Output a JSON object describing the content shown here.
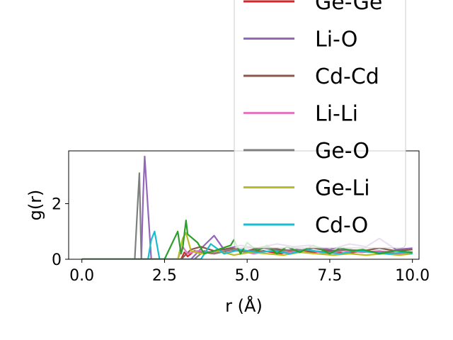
{
  "chart_data": {
    "type": "line",
    "title": "",
    "xlabel": "r (Å)",
    "ylabel": "g(r)",
    "xlim": [
      -0.4,
      10.2
    ],
    "ylim": [
      0,
      3.9
    ],
    "xticks": [
      0.0,
      2.5,
      5.0,
      7.5,
      10.0
    ],
    "xtick_labels": [
      "0.0",
      "2.5",
      "5.0",
      "7.5",
      "10.0"
    ],
    "yticks": [
      0,
      2
    ],
    "ytick_labels": [
      "0",
      "2"
    ],
    "grid": false,
    "legend_placement": "upper-right, extends above the axes",
    "series": [
      {
        "name": "Ge-Ge",
        "color": "#d62728",
        "x": [
          0.0,
          3.0,
          3.1,
          3.2,
          3.4,
          4.0,
          4.6,
          5.0,
          5.5,
          6.0,
          6.5,
          7.0,
          7.5,
          8.0,
          8.5,
          9.0,
          9.5,
          10.0
        ],
        "y": [
          0,
          0,
          0.25,
          0.1,
          0.3,
          0.2,
          0.35,
          0.25,
          0.3,
          0.2,
          0.35,
          0.25,
          0.3,
          0.2,
          0.3,
          0.25,
          0.2,
          0.25
        ]
      },
      {
        "name": "Li-O",
        "color": "#9467bd",
        "x": [
          0.0,
          1.8,
          1.85,
          1.9,
          2.0,
          2.1,
          3.3,
          3.7,
          4.0,
          4.3,
          4.8,
          5.3,
          5.9,
          6.4,
          6.9,
          7.5,
          8.1,
          8.6,
          9.0,
          9.5,
          10.0
        ],
        "y": [
          0,
          0,
          2.2,
          3.7,
          1.8,
          0,
          0,
          0.5,
          0.85,
          0.35,
          0.5,
          0.4,
          0.55,
          0.45,
          0.5,
          0.35,
          0.55,
          0.45,
          0.75,
          0.35,
          0.4
        ]
      },
      {
        "name": "Cd-Cd",
        "color": "#8c564b",
        "x": [
          0.0,
          3.0,
          3.3,
          3.6,
          4.0,
          4.5,
          5.0,
          5.5,
          6.0,
          6.5,
          7.0,
          7.5,
          8.0,
          8.5,
          9.0,
          9.5,
          10.0
        ],
        "y": [
          0,
          0,
          0.35,
          0.45,
          0.3,
          0.4,
          0.3,
          0.45,
          0.35,
          0.3,
          0.4,
          0.3,
          0.35,
          0.3,
          0.4,
          0.3,
          0.35
        ]
      },
      {
        "name": "Li-Li",
        "color": "#e377c2",
        "x": [
          0.0,
          2.9,
          3.05,
          3.2,
          3.5,
          4.0,
          4.6,
          5.2,
          5.7,
          6.3,
          6.8,
          7.4,
          7.9,
          8.5,
          9.0,
          9.6,
          10.0
        ],
        "y": [
          0,
          0,
          0.45,
          0.2,
          0.3,
          0.25,
          0.35,
          0.2,
          0.3,
          0.25,
          0.35,
          0.2,
          0.3,
          0.25,
          0.3,
          0.2,
          0.25
        ]
      },
      {
        "name": "Ge-O",
        "color": "#7f7f7f",
        "x": [
          0.0,
          1.6,
          1.68,
          1.74,
          1.8,
          3.4,
          3.7,
          4.0,
          4.5,
          5.0,
          5.5,
          6.0,
          6.5,
          7.0,
          7.5,
          8.0,
          8.5,
          9.0,
          9.5,
          10.0
        ],
        "y": [
          0,
          0,
          1.8,
          3.1,
          0,
          0,
          0.3,
          0.2,
          0.35,
          0.25,
          0.4,
          0.3,
          0.35,
          0.3,
          0.25,
          0.35,
          0.3,
          0.25,
          0.3,
          0.25
        ]
      },
      {
        "name": "Ge-Li",
        "color": "#bcbd22",
        "x": [
          0.0,
          2.9,
          3.05,
          3.15,
          3.3,
          3.6,
          4.1,
          4.6,
          5.1,
          5.6,
          6.1,
          6.6,
          7.1,
          7.6,
          8.1,
          8.6,
          9.1,
          9.6,
          10.0
        ],
        "y": [
          0,
          0,
          0.75,
          0.95,
          0.3,
          0.2,
          0.3,
          0.15,
          0.25,
          0.2,
          0.15,
          0.25,
          0.2,
          0.15,
          0.2,
          0.15,
          0.2,
          0.15,
          0.2
        ]
      },
      {
        "name": "Cd-O",
        "color": "#17becf",
        "x": [
          0.0,
          2.0,
          2.1,
          2.2,
          2.35,
          3.6,
          3.9,
          4.3,
          4.8,
          5.3,
          5.8,
          6.3,
          6.8,
          7.3,
          7.8,
          8.3,
          8.8,
          9.3,
          9.8,
          10.0
        ],
        "y": [
          0,
          0,
          0.7,
          1.0,
          0,
          0,
          0.55,
          0.2,
          0.35,
          0.25,
          0.3,
          0.2,
          0.35,
          0.25,
          0.2,
          0.3,
          0.25,
          0.2,
          0.25,
          0.2
        ]
      },
      {
        "name": "",
        "color": "#2ca02c",
        "x": [
          0.0,
          2.5,
          2.7,
          2.9,
          3.0,
          3.05,
          3.15,
          3.2,
          3.5,
          3.7,
          4.0,
          4.5,
          4.6,
          4.8,
          5.0,
          5.3,
          5.6,
          5.9,
          6.2,
          6.6,
          7.0,
          7.5,
          7.8,
          8.2,
          8.5,
          9.0,
          9.5,
          10.0
        ],
        "y": [
          0,
          0,
          0.5,
          1.0,
          0.2,
          0.4,
          1.4,
          0.9,
          0.6,
          0.2,
          0.3,
          0.5,
          0.7,
          0.2,
          0.6,
          0.3,
          0.5,
          0.2,
          0.45,
          0.25,
          0.5,
          0.2,
          0.4,
          0.3,
          0.35,
          0.2,
          0.3,
          0.25
        ]
      }
    ]
  }
}
